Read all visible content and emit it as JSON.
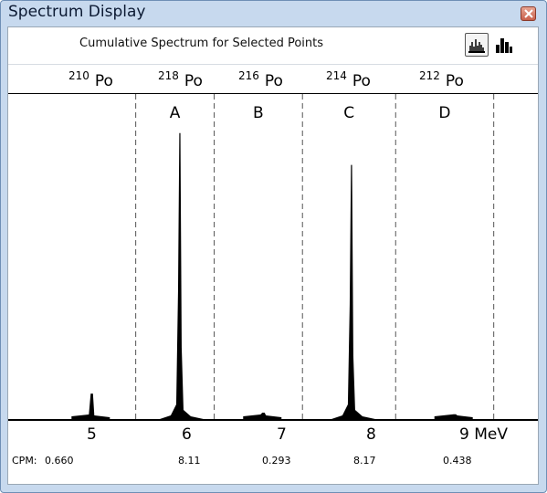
{
  "window": {
    "title": "Spectrum Display",
    "close_icon": "close-icon"
  },
  "header": {
    "title": "Cumulative Spectrum for Selected Points",
    "view_buttons": [
      {
        "icon": "peaks-view-icon",
        "active": true
      },
      {
        "icon": "histogram-view-icon",
        "active": false
      }
    ]
  },
  "isotopes": [
    {
      "mass": "210",
      "symbol": "Po"
    },
    {
      "mass": "218",
      "symbol": "Po"
    },
    {
      "mass": "216",
      "symbol": "Po"
    },
    {
      "mass": "214",
      "symbol": "Po"
    },
    {
      "mass": "212",
      "symbol": "Po"
    }
  ],
  "regions": [
    "A",
    "B",
    "C",
    "D"
  ],
  "xaxis": {
    "ticks": [
      "5",
      "6",
      "7",
      "8",
      "9 MeV"
    ]
  },
  "cpm": {
    "prefix": "CPM:",
    "values": [
      "0.660",
      "8.11",
      "0.293",
      "8.17",
      "0.438"
    ]
  },
  "chart_data": {
    "type": "area",
    "xlabel": "MeV",
    "xlim": [
      4.3,
      9.7
    ],
    "ylim": [
      0,
      1
    ],
    "region_boundaries_mev": [
      5.6,
      6.4,
      7.3,
      8.25,
      9.25
    ],
    "region_labels": [
      "A",
      "B",
      "C",
      "D"
    ],
    "peaks": [
      {
        "center_mev": 5.15,
        "height": 0.08,
        "label": "210 Po"
      },
      {
        "center_mev": 6.05,
        "height": 0.9,
        "label": "218 Po"
      },
      {
        "center_mev": 6.9,
        "height": 0.02,
        "label": "216 Po"
      },
      {
        "center_mev": 7.8,
        "height": 0.8,
        "label": "214 Po"
      },
      {
        "center_mev": 8.85,
        "height": 0.015,
        "label": "212 Po"
      }
    ],
    "grid": false
  }
}
